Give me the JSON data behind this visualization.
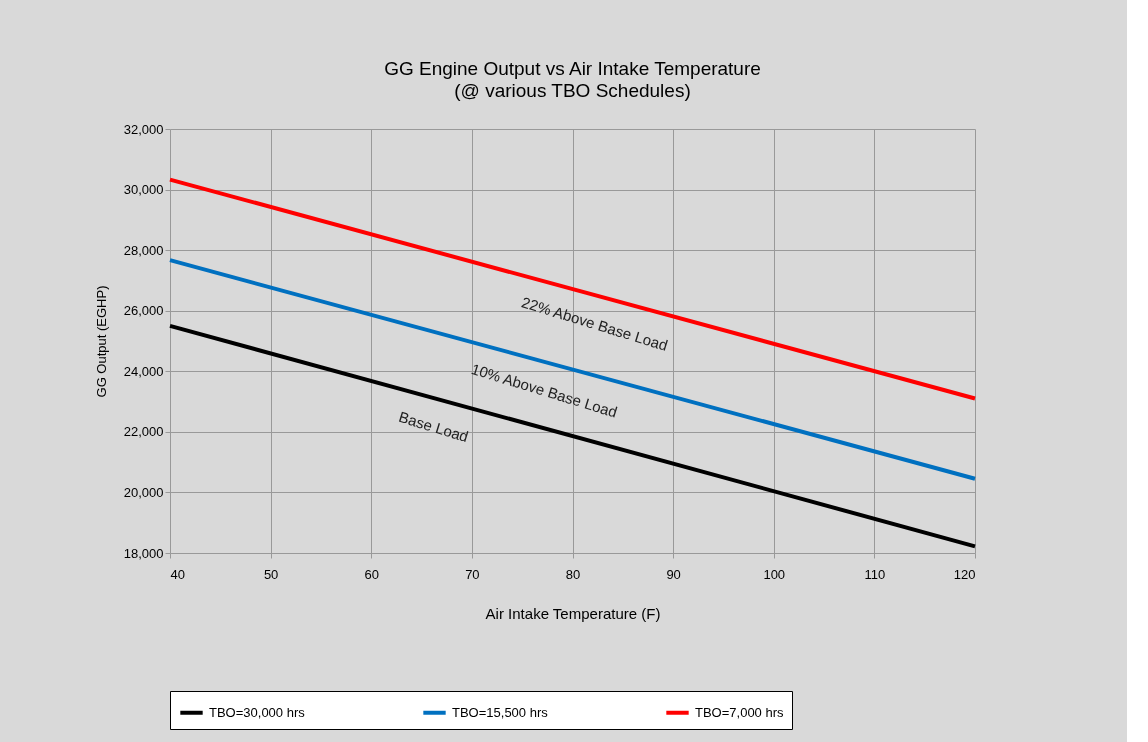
{
  "chart_data": {
    "type": "line",
    "title": "GG Engine Output  vs  Air Intake Temperature",
    "subtitle": "(@ various TBO Schedules)",
    "xlabel": "Air Intake Temperature (F)",
    "ylabel": "GG Output (EGHP)",
    "x": [
      40,
      120
    ],
    "series": [
      {
        "name": "TBO=30,000 hrs",
        "color": "#000000",
        "values": [
          25500,
          18220
        ]
      },
      {
        "name": "TBO=15,500 hrs",
        "color": "#0070c0",
        "values": [
          27670,
          20450
        ]
      },
      {
        "name": "TBO=7,000 hrs",
        "color": "#ff0000",
        "values": [
          30330,
          23100
        ]
      }
    ],
    "xlim": [
      40,
      120
    ],
    "xticks": [
      40,
      50,
      60,
      70,
      80,
      90,
      100,
      110,
      120
    ],
    "ylim": [
      18000,
      32000
    ],
    "yticks": [
      {
        "value": 18000,
        "label": "18,000"
      },
      {
        "value": 20000,
        "label": "20,000"
      },
      {
        "value": 22000,
        "label": "22,000"
      },
      {
        "value": 24000,
        "label": "24,000"
      },
      {
        "value": 26000,
        "label": "26,000"
      },
      {
        "value": 28000,
        "label": "28,000"
      },
      {
        "value": 30000,
        "label": "30,000"
      },
      {
        "value": 32000,
        "label": "32,000"
      }
    ],
    "annotations": [
      {
        "text": "22% Above Base Load",
        "x": 83,
        "y": 26444
      },
      {
        "text": "10% Above Base Load",
        "x": 78,
        "y": 24240
      },
      {
        "text": "Base Load",
        "x": 67,
        "y": 23043
      }
    ],
    "grid": true,
    "legend": "bottom",
    "marker": "none",
    "line_style": "solid"
  }
}
